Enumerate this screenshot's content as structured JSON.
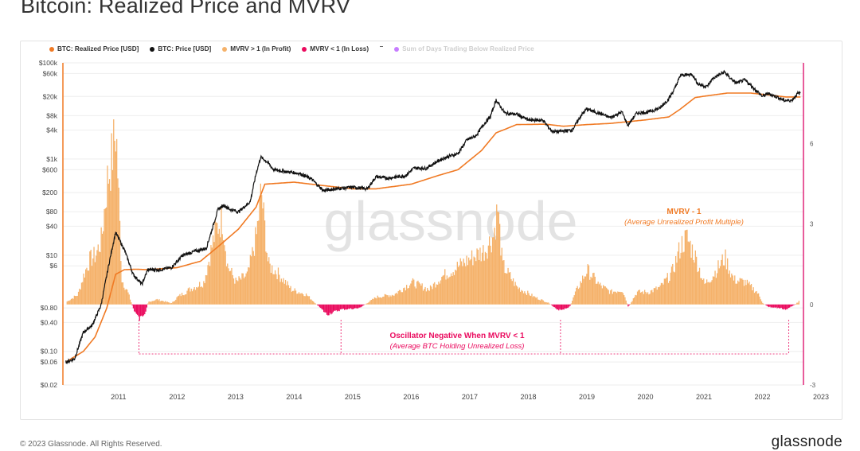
{
  "title": "Bitcoin: Realized Price and MVRV",
  "footer": {
    "copyright": "© 2023 Glassnode. All Rights Reserved.",
    "brand": "glassnode"
  },
  "watermark": "glassnode",
  "colors": {
    "realized": "#f07a24",
    "price": "#111111",
    "mvrv_profit": "#f5b26b",
    "mvrv_loss": "#ea0a5e",
    "days_below": "#c77dff",
    "right_axis": "#e0267a"
  },
  "chart_data": {
    "type": "line",
    "legend": [
      {
        "name": "BTC: Realized Price [USD]",
        "color": "#f07a24"
      },
      {
        "name": "BTC: Price [USD]",
        "color": "#111111"
      },
      {
        "name": "MVRV > 1 (In Profit)",
        "color": "#f5b26b"
      },
      {
        "name": "MVRV < 1 (In Loss)",
        "color": "#ea0a5e"
      },
      {
        "name": "Sum of Days Trading Below Realized Price",
        "color": "#c77dff",
        "muted": true
      }
    ],
    "legend_position": "top-left",
    "x_ticks": [
      "2011",
      "2012",
      "2013",
      "2014",
      "2015",
      "2016",
      "2017",
      "2018",
      "2019",
      "2020",
      "2021",
      "2022",
      "2023"
    ],
    "x_range": [
      2010.55,
      2023.2
    ],
    "y_left": {
      "scale": "log",
      "range": [
        0.02,
        100000
      ],
      "ticks": [
        {
          "v": 100000,
          "label": "$100k"
        },
        {
          "v": 60000,
          "label": "$60k"
        },
        {
          "v": 20000,
          "label": "$20k"
        },
        {
          "v": 8000,
          "label": "$8k"
        },
        {
          "v": 4000,
          "label": "$4k"
        },
        {
          "v": 1000,
          "label": "$1k"
        },
        {
          "v": 600,
          "label": "$600"
        },
        {
          "v": 200,
          "label": "$200"
        },
        {
          "v": 80,
          "label": "$80"
        },
        {
          "v": 40,
          "label": "$40"
        },
        {
          "v": 10,
          "label": "$10"
        },
        {
          "v": 6,
          "label": "$6"
        },
        {
          "v": 0.8,
          "label": "$0.80"
        },
        {
          "v": 0.4,
          "label": "$0.40"
        },
        {
          "v": 0.1,
          "label": "$0.10"
        },
        {
          "v": 0.06,
          "label": "$0.06"
        },
        {
          "v": 0.02,
          "label": "$0.02"
        }
      ]
    },
    "y_right": {
      "scale": "linear",
      "range": [
        -3,
        9
      ],
      "ticks": [
        {
          "v": 6,
          "label": "6"
        },
        {
          "v": 3,
          "label": "3"
        },
        {
          "v": 0,
          "label": "0"
        },
        {
          "v": -3,
          "label": "-3"
        }
      ]
    },
    "grid": true,
    "series": [
      {
        "name": "BTC: Price [USD]",
        "points": [
          [
            2010.6,
            0.06
          ],
          [
            2010.75,
            0.07
          ],
          [
            2010.9,
            0.25
          ],
          [
            2011.05,
            0.35
          ],
          [
            2011.2,
            0.9
          ],
          [
            2011.35,
            8
          ],
          [
            2011.45,
            30
          ],
          [
            2011.6,
            13
          ],
          [
            2011.75,
            4
          ],
          [
            2011.9,
            2.5
          ],
          [
            2012.0,
            5
          ],
          [
            2012.2,
            5
          ],
          [
            2012.4,
            5.5
          ],
          [
            2012.6,
            10
          ],
          [
            2012.8,
            12
          ],
          [
            2013.0,
            14
          ],
          [
            2013.2,
            90
          ],
          [
            2013.3,
            110
          ],
          [
            2013.4,
            90
          ],
          [
            2013.55,
            80
          ],
          [
            2013.75,
            130
          ],
          [
            2013.85,
            500
          ],
          [
            2013.93,
            1100
          ],
          [
            2014.05,
            850
          ],
          [
            2014.15,
            600
          ],
          [
            2014.35,
            550
          ],
          [
            2014.6,
            500
          ],
          [
            2014.8,
            380
          ],
          [
            2015.0,
            220
          ],
          [
            2015.2,
            240
          ],
          [
            2015.5,
            260
          ],
          [
            2015.75,
            240
          ],
          [
            2015.9,
            430
          ],
          [
            2016.1,
            400
          ],
          [
            2016.4,
            450
          ],
          [
            2016.55,
            650
          ],
          [
            2016.75,
            640
          ],
          [
            2016.95,
            900
          ],
          [
            2017.1,
            1100
          ],
          [
            2017.3,
            1300
          ],
          [
            2017.45,
            2500
          ],
          [
            2017.6,
            3000
          ],
          [
            2017.75,
            5500
          ],
          [
            2017.85,
            7500
          ],
          [
            2017.95,
            17000
          ],
          [
            2018.1,
            9000
          ],
          [
            2018.3,
            8500
          ],
          [
            2018.5,
            6500
          ],
          [
            2018.75,
            6400
          ],
          [
            2018.9,
            3800
          ],
          [
            2019.0,
            3700
          ],
          [
            2019.25,
            4000
          ],
          [
            2019.4,
            8000
          ],
          [
            2019.5,
            11000
          ],
          [
            2019.7,
            9000
          ],
          [
            2019.9,
            7300
          ],
          [
            2020.1,
            9500
          ],
          [
            2020.2,
            5000
          ],
          [
            2020.35,
            9000
          ],
          [
            2020.55,
            9500
          ],
          [
            2020.75,
            11500
          ],
          [
            2020.9,
            18000
          ],
          [
            2021.0,
            29000
          ],
          [
            2021.1,
            55000
          ],
          [
            2021.3,
            58000
          ],
          [
            2021.4,
            36000
          ],
          [
            2021.55,
            32000
          ],
          [
            2021.65,
            47000
          ],
          [
            2021.85,
            65000
          ],
          [
            2021.95,
            48000
          ],
          [
            2022.05,
            38000
          ],
          [
            2022.2,
            44000
          ],
          [
            2022.35,
            30000
          ],
          [
            2022.5,
            20000
          ],
          [
            2022.6,
            23000
          ],
          [
            2022.75,
            19500
          ],
          [
            2022.87,
            16500
          ],
          [
            2023.0,
            16600
          ],
          [
            2023.1,
            23000
          ],
          [
            2023.15,
            23500
          ]
        ]
      },
      {
        "name": "BTC: Realized Price [USD]",
        "points": [
          [
            2010.6,
            0.06
          ],
          [
            2010.9,
            0.1
          ],
          [
            2011.1,
            0.2
          ],
          [
            2011.3,
            0.8
          ],
          [
            2011.45,
            4
          ],
          [
            2011.6,
            5
          ],
          [
            2011.8,
            5.1
          ],
          [
            2012.0,
            5
          ],
          [
            2012.5,
            5.5
          ],
          [
            2012.9,
            7.5
          ],
          [
            2013.2,
            15
          ],
          [
            2013.55,
            35
          ],
          [
            2013.85,
            100
          ],
          [
            2014.0,
            300
          ],
          [
            2014.5,
            330
          ],
          [
            2015.0,
            280
          ],
          [
            2015.5,
            240
          ],
          [
            2015.9,
            240
          ],
          [
            2016.5,
            300
          ],
          [
            2016.95,
            450
          ],
          [
            2017.3,
            600
          ],
          [
            2017.7,
            1500
          ],
          [
            2017.95,
            3500
          ],
          [
            2018.3,
            5200
          ],
          [
            2018.8,
            5300
          ],
          [
            2019.1,
            4800
          ],
          [
            2019.5,
            5200
          ],
          [
            2019.9,
            5500
          ],
          [
            2020.5,
            6500
          ],
          [
            2020.9,
            7500
          ],
          [
            2021.1,
            11000
          ],
          [
            2021.35,
            19000
          ],
          [
            2021.6,
            21000
          ],
          [
            2021.9,
            23500
          ],
          [
            2022.3,
            23500
          ],
          [
            2022.6,
            21500
          ],
          [
            2022.9,
            19500
          ],
          [
            2023.15,
            19500
          ]
        ]
      },
      {
        "name": "MVRV - 1",
        "points": [
          [
            2010.6,
            0.1
          ],
          [
            2010.8,
            0.4
          ],
          [
            2010.9,
            1.2
          ],
          [
            2011.0,
            1.8
          ],
          [
            2011.1,
            2.0
          ],
          [
            2011.2,
            2.6
          ],
          [
            2011.3,
            5.0
          ],
          [
            2011.37,
            5.8
          ],
          [
            2011.45,
            7.1
          ],
          [
            2011.55,
            1.0
          ],
          [
            2011.65,
            0.5
          ],
          [
            2011.75,
            -0.2
          ],
          [
            2011.85,
            -0.6
          ],
          [
            2011.95,
            -0.3
          ],
          [
            2012.0,
            0.1
          ],
          [
            2012.15,
            0.2
          ],
          [
            2012.4,
            0.05
          ],
          [
            2012.5,
            0.3
          ],
          [
            2012.7,
            0.6
          ],
          [
            2012.95,
            0.9
          ],
          [
            2013.15,
            3.0
          ],
          [
            2013.27,
            3.5
          ],
          [
            2013.35,
            1.6
          ],
          [
            2013.5,
            0.9
          ],
          [
            2013.7,
            1.2
          ],
          [
            2013.85,
            2.8
          ],
          [
            2013.93,
            4.6
          ],
          [
            2014.05,
            1.6
          ],
          [
            2014.2,
            1.3
          ],
          [
            2014.45,
            0.6
          ],
          [
            2014.7,
            0.4
          ],
          [
            2014.9,
            -0.05
          ],
          [
            2015.05,
            -0.4
          ],
          [
            2015.3,
            -0.2
          ],
          [
            2015.6,
            -0.15
          ],
          [
            2015.9,
            0.3
          ],
          [
            2016.2,
            0.4
          ],
          [
            2016.5,
            0.9
          ],
          [
            2016.8,
            0.6
          ],
          [
            2017.0,
            1.1
          ],
          [
            2017.4,
            1.7
          ],
          [
            2017.6,
            2.0
          ],
          [
            2017.75,
            2.2
          ],
          [
            2017.9,
            2.8
          ],
          [
            2017.97,
            3.9
          ],
          [
            2018.05,
            1.6
          ],
          [
            2018.3,
            0.7
          ],
          [
            2018.6,
            0.3
          ],
          [
            2018.85,
            0.05
          ],
          [
            2019.0,
            -0.25
          ],
          [
            2019.2,
            -0.1
          ],
          [
            2019.3,
            0.5
          ],
          [
            2019.5,
            1.4
          ],
          [
            2019.7,
            0.8
          ],
          [
            2019.9,
            0.5
          ],
          [
            2020.1,
            0.6
          ],
          [
            2020.2,
            -0.1
          ],
          [
            2020.35,
            0.5
          ],
          [
            2020.55,
            0.5
          ],
          [
            2020.75,
            0.7
          ],
          [
            2020.95,
            1.3
          ],
          [
            2021.1,
            2.4
          ],
          [
            2021.2,
            2.7
          ],
          [
            2021.35,
            1.9
          ],
          [
            2021.5,
            0.8
          ],
          [
            2021.65,
            1.2
          ],
          [
            2021.85,
            1.9
          ],
          [
            2022.0,
            1.0
          ],
          [
            2022.2,
            0.9
          ],
          [
            2022.4,
            0.5
          ],
          [
            2022.5,
            0.05
          ],
          [
            2022.6,
            -0.1
          ],
          [
            2022.8,
            -0.15
          ],
          [
            2022.9,
            -0.2
          ],
          [
            2023.05,
            0.0
          ],
          [
            2023.15,
            0.2
          ]
        ]
      }
    ],
    "annotations": [
      {
        "text": "MVRV - 1",
        "style": "bold"
      },
      {
        "text": "(Average Unrealized Profit Multiple)",
        "style": "italic"
      },
      {
        "text": "Oscillator Negative When MVRV < 1",
        "style": "bold"
      },
      {
        "text": "(Average BTC Holding Unrealized Loss)",
        "style": "italic"
      }
    ],
    "loss_markers_x": [
      2011.85,
      2015.3,
      2019.05,
      2022.95
    ]
  }
}
